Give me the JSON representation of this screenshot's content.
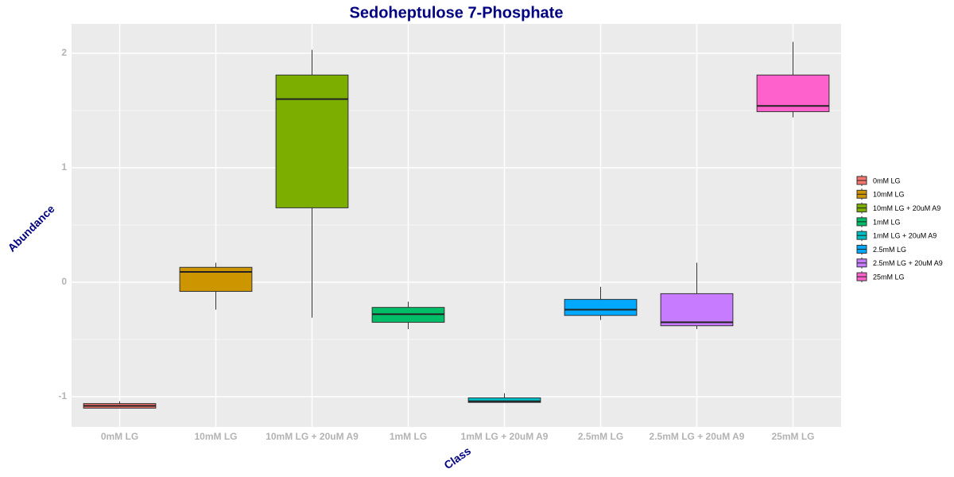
{
  "chart_data": {
    "type": "box",
    "title": "Sedoheptulose 7-Phosphate",
    "x_label": "Class",
    "y_label": "Abundance",
    "categories": [
      "0mM LG",
      "10mM LG",
      "10mM LG + 20uM A9",
      "1mM LG",
      "1mM LG + 20uM A9",
      "2.5mM LG",
      "2.5mM LG + 20uM A9",
      "25mM LG"
    ],
    "colors": [
      "#F8766D",
      "#CD9600",
      "#7CAE00",
      "#00BE67",
      "#00BFC4",
      "#00A9FF",
      "#C77CFF",
      "#FF61CC"
    ],
    "min": [
      -1.1,
      -0.24,
      -0.31,
      -0.41,
      -1.05,
      -0.33,
      -0.41,
      1.44
    ],
    "q1": [
      -1.1,
      -0.08,
      0.65,
      -0.35,
      -1.05,
      -0.29,
      -0.38,
      1.49
    ],
    "median": [
      -1.08,
      0.09,
      1.6,
      -0.28,
      -1.04,
      -0.24,
      -0.35,
      1.54
    ],
    "q3": [
      -1.06,
      0.13,
      1.81,
      -0.22,
      -1.01,
      -0.15,
      -0.1,
      1.81
    ],
    "max": [
      -1.04,
      0.17,
      2.03,
      -0.17,
      -0.97,
      -0.04,
      0.17,
      2.1
    ],
    "ylim": [
      -1.264,
      2.257
    ],
    "yticks": [
      -1,
      0,
      1,
      2
    ],
    "grid": true,
    "legend_position": "right"
  }
}
